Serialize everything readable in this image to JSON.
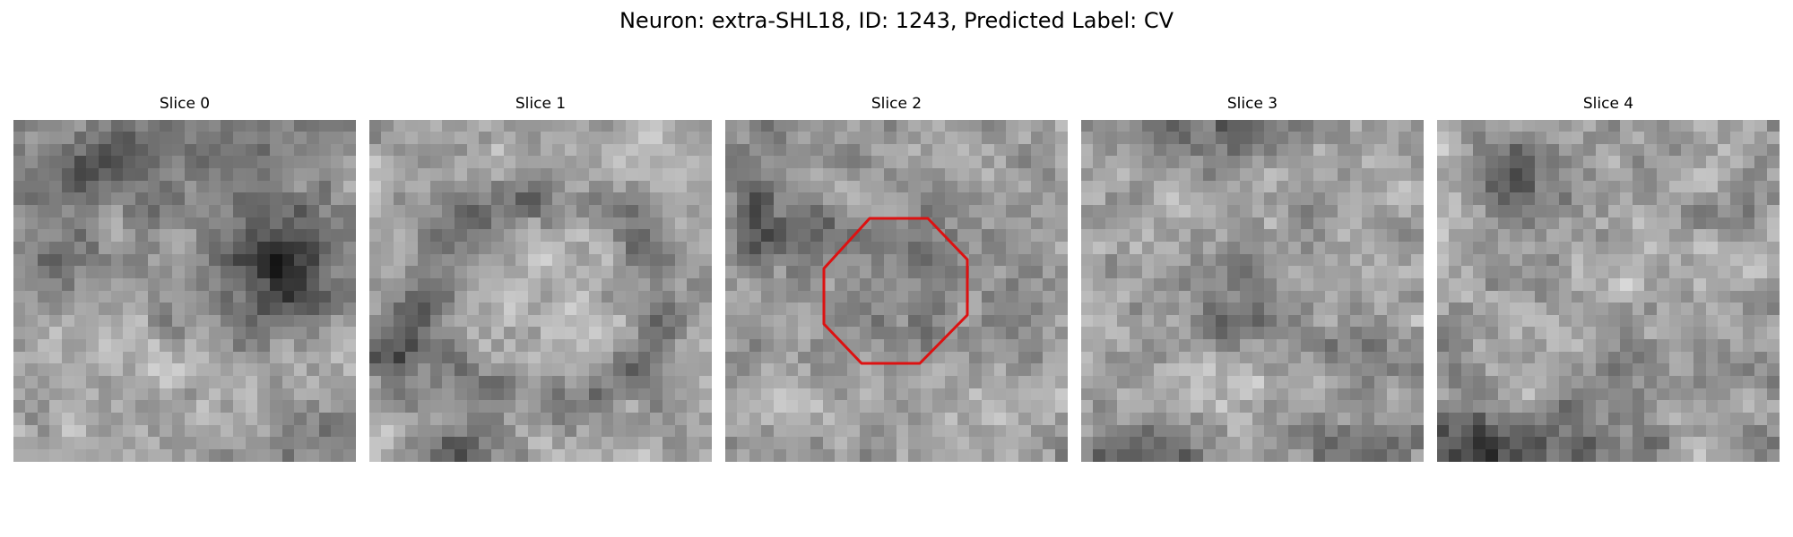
{
  "figure": {
    "title": "Neuron: extra-SHL18, ID: 1243, Predicted Label: CV"
  },
  "slices": [
    {
      "title": "Slice 0"
    },
    {
      "title": "Slice 1"
    },
    {
      "title": "Slice 2"
    },
    {
      "title": "Slice 3"
    },
    {
      "title": "Slice 4"
    }
  ],
  "roi": {
    "slice": "Slice 2",
    "shape": "octagon",
    "color": "#dd1111"
  },
  "colormap": "gray"
}
